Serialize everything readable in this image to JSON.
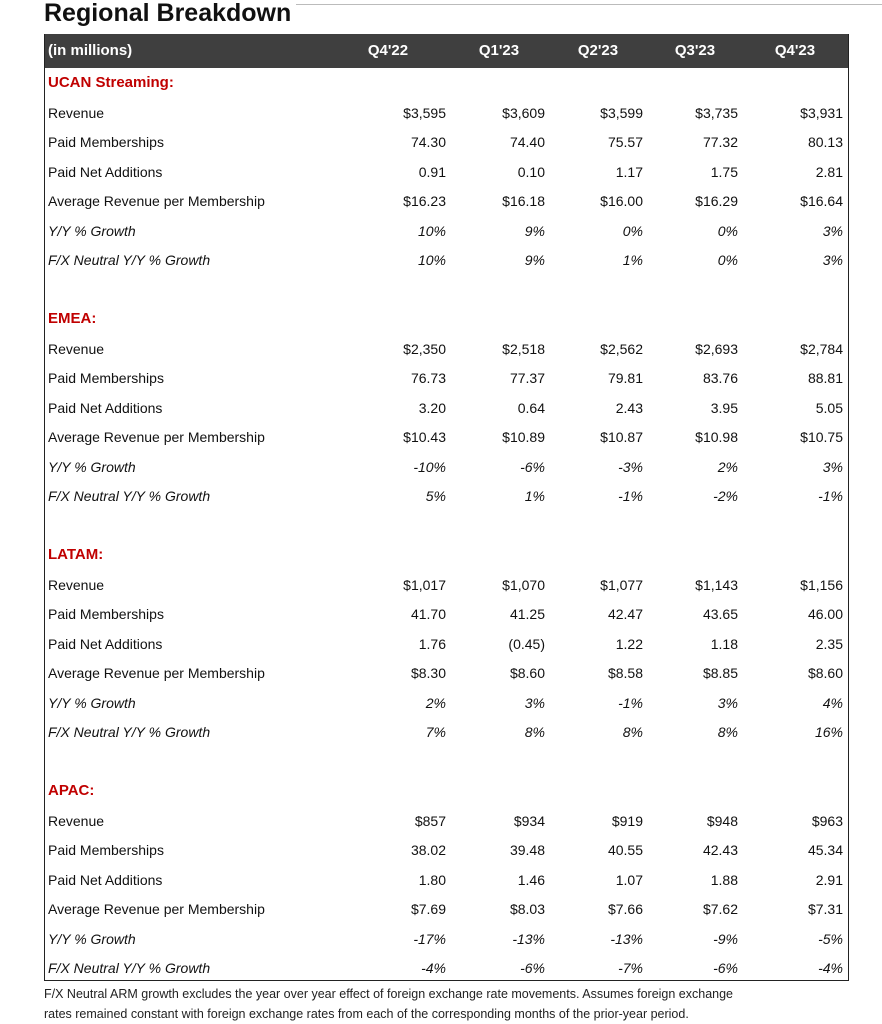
{
  "title": "Regional Breakdown",
  "table": {
    "header": [
      "(in millions)",
      "Q4'22",
      "Q1'23",
      "Q2'23",
      "Q3'23",
      "Q4'23"
    ],
    "sections": [
      {
        "name": "UCAN Streaming:",
        "rows": [
          [
            "Revenue",
            "$3,595",
            "$3,609",
            "$3,599",
            "$3,735",
            "$3,931"
          ],
          [
            "Paid Memberships",
            "74.30",
            "74.40",
            "75.57",
            "77.32",
            "80.13"
          ],
          [
            "Paid Net Additions",
            "0.91",
            "0.10",
            "1.17",
            "1.75",
            "2.81"
          ],
          [
            "Average Revenue per Membership",
            "$16.23",
            "$16.18",
            "$16.00",
            "$16.29",
            "$16.64"
          ],
          [
            "Y/Y % Growth",
            "10%",
            "9%",
            "0%",
            "0%",
            "3%"
          ],
          [
            "F/X Neutral Y/Y % Growth",
            "10%",
            "9%",
            "1%",
            "0%",
            "3%"
          ]
        ]
      },
      {
        "name": "EMEA:",
        "rows": [
          [
            "Revenue",
            "$2,350",
            "$2,518",
            "$2,562",
            "$2,693",
            "$2,784"
          ],
          [
            "Paid Memberships",
            "76.73",
            "77.37",
            "79.81",
            "83.76",
            "88.81"
          ],
          [
            "Paid Net Additions",
            "3.20",
            "0.64",
            "2.43",
            "3.95",
            "5.05"
          ],
          [
            "Average Revenue per Membership",
            "$10.43",
            "$10.89",
            "$10.87",
            "$10.98",
            "$10.75"
          ],
          [
            "Y/Y % Growth",
            "-10%",
            "-6%",
            "-3%",
            "2%",
            "3%"
          ],
          [
            "F/X Neutral Y/Y % Growth",
            "5%",
            "1%",
            "-1%",
            "-2%",
            "-1%"
          ]
        ]
      },
      {
        "name": "LATAM:",
        "rows": [
          [
            "Revenue",
            "$1,017",
            "$1,070",
            "$1,077",
            "$1,143",
            "$1,156"
          ],
          [
            "Paid Memberships",
            "41.70",
            "41.25",
            "42.47",
            "43.65",
            "46.00"
          ],
          [
            "Paid Net Additions",
            "1.76",
            "(0.45)",
            "1.22",
            "1.18",
            "2.35"
          ],
          [
            "Average Revenue per Membership",
            "$8.30",
            "$8.60",
            "$8.58",
            "$8.85",
            "$8.60"
          ],
          [
            "Y/Y % Growth",
            "2%",
            "3%",
            "-1%",
            "3%",
            "4%"
          ],
          [
            "F/X Neutral Y/Y % Growth",
            "7%",
            "8%",
            "8%",
            "8%",
            "16%"
          ]
        ]
      },
      {
        "name": "APAC:",
        "rows": [
          [
            "Revenue",
            "$857",
            "$934",
            "$919",
            "$948",
            "$963"
          ],
          [
            "Paid Memberships",
            "38.02",
            "39.48",
            "40.55",
            "42.43",
            "45.34"
          ],
          [
            "Paid Net Additions",
            "1.80",
            "1.46",
            "1.07",
            "1.88",
            "2.91"
          ],
          [
            "Average Revenue per Membership",
            "$7.69",
            "$8.03",
            "$7.66",
            "$7.62",
            "$7.31"
          ],
          [
            "Y/Y % Growth",
            "-17%",
            "-13%",
            "-13%",
            "-9%",
            "-5%"
          ],
          [
            "F/X Neutral Y/Y % Growth",
            "-4%",
            "-6%",
            "-7%",
            "-6%",
            "-4%"
          ]
        ]
      }
    ]
  },
  "footnote": [
    "F/X Neutral ARM growth excludes the year over year effect of foreign exchange rate movements. Assumes foreign exchange",
    "rates remained constant with foreign exchange rates from each of the corresponding months of the prior-year period."
  ]
}
